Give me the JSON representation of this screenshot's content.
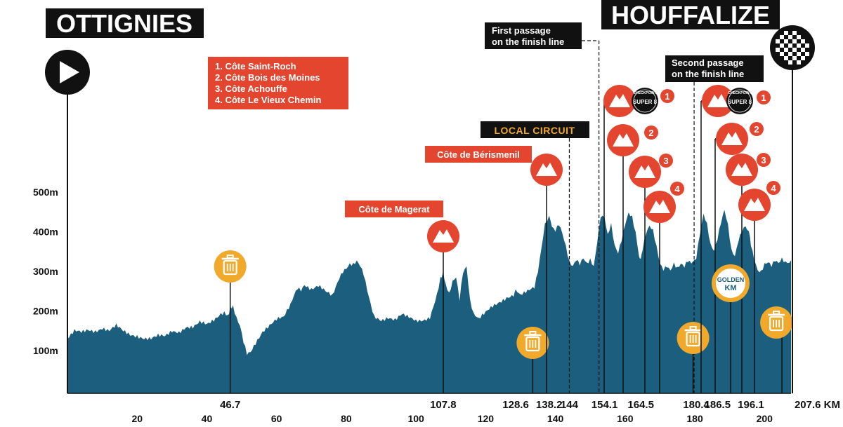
{
  "start_city": "OTTIGNIES",
  "finish_city": "HOUFFALIZE",
  "climb_list": [
    "1. Côte Saint-Roch",
    "2. Côte Bois des Moines",
    "3. Côte Achouffe",
    "4. Côte Le Vieux Chemin"
  ],
  "first_passage": [
    "First passage",
    "on the finish line"
  ],
  "second_passage": [
    "Second passage",
    "on the finish line"
  ],
  "local_circuit": "LOCAL CIRCUIT",
  "climb_labels": {
    "magerat": "Côte de Magerat",
    "berismenil": "Côte de Bérismenil"
  },
  "golden_km": [
    "GOLDEN",
    "KM"
  ],
  "checkpoint_text": {
    "top": "CHECKPOINT",
    "mid": "SUPER 8"
  },
  "colors": {
    "profile": "#1b5e7e",
    "climb": "#e3452f",
    "feed": "#f0a92a",
    "dark": "#111111",
    "golden": "#f0a92a",
    "golden_text": "#1b5e7e"
  },
  "chart_data": {
    "type": "area",
    "title": "",
    "xlabel": "",
    "ylabel": "",
    "y_unit": "m",
    "x_ticks": [
      20,
      40,
      60,
      80,
      100,
      120,
      140,
      160,
      180,
      200
    ],
    "y_ticks": [
      100,
      200,
      300,
      400,
      500
    ],
    "y_tick_labels": [
      "100m",
      "200m",
      "300m",
      "400m",
      "500m"
    ],
    "xlim": [
      0,
      207.6
    ],
    "ylim": [
      0,
      500
    ],
    "distance_end_label": "207.6 KM",
    "elevation": [
      [
        0,
        130
      ],
      [
        2,
        148
      ],
      [
        4,
        145
      ],
      [
        6,
        152
      ],
      [
        8,
        150
      ],
      [
        10,
        158
      ],
      [
        12,
        150
      ],
      [
        14,
        162
      ],
      [
        16,
        148
      ],
      [
        18,
        140
      ],
      [
        20,
        138
      ],
      [
        22,
        132
      ],
      [
        24,
        130
      ],
      [
        26,
        136
      ],
      [
        28,
        135
      ],
      [
        30,
        150
      ],
      [
        32,
        148
      ],
      [
        34,
        160
      ],
      [
        36,
        158
      ],
      [
        38,
        170
      ],
      [
        40,
        165
      ],
      [
        42,
        178
      ],
      [
        44,
        195
      ],
      [
        45,
        198
      ],
      [
        46,
        190
      ],
      [
        46.7,
        205
      ],
      [
        47.5,
        210
      ],
      [
        48.5,
        180
      ],
      [
        49.5,
        160
      ],
      [
        50.5,
        120
      ],
      [
        51.5,
        90
      ],
      [
        52.5,
        95
      ],
      [
        54,
        120
      ],
      [
        56,
        150
      ],
      [
        58,
        165
      ],
      [
        60,
        178
      ],
      [
        62,
        182
      ],
      [
        64,
        215
      ],
      [
        65,
        240
      ],
      [
        66,
        260
      ],
      [
        67,
        255
      ],
      [
        68,
        268
      ],
      [
        70,
        255
      ],
      [
        72,
        262
      ],
      [
        74,
        248
      ],
      [
        76,
        238
      ],
      [
        78,
        285
      ],
      [
        79,
        302
      ],
      [
        80,
        310
      ],
      [
        81,
        320
      ],
      [
        82,
        318
      ],
      [
        83,
        325
      ],
      [
        84,
        312
      ],
      [
        85,
        290
      ],
      [
        86,
        250
      ],
      [
        87,
        215
      ],
      [
        88,
        185
      ],
      [
        90,
        178
      ],
      [
        92,
        185
      ],
      [
        94,
        178
      ],
      [
        96,
        190
      ],
      [
        98,
        182
      ],
      [
        100,
        175
      ],
      [
        102,
        178
      ],
      [
        104,
        185
      ],
      [
        106,
        240
      ],
      [
        107,
        280
      ],
      [
        107.8,
        300
      ],
      [
        108.5,
        265
      ],
      [
        109.5,
        240
      ],
      [
        110.5,
        272
      ],
      [
        111.5,
        285
      ],
      [
        112.5,
        230
      ],
      [
        113.5,
        300
      ],
      [
        114.5,
        315
      ],
      [
        115.5,
        230
      ],
      [
        116.5,
        195
      ],
      [
        118,
        180
      ],
      [
        120,
        195
      ],
      [
        122,
        210
      ],
      [
        124,
        222
      ],
      [
        126,
        235
      ],
      [
        128,
        242
      ],
      [
        128.6,
        250
      ],
      [
        130,
        240
      ],
      [
        132,
        248
      ],
      [
        134,
        258
      ],
      [
        135,
        300
      ],
      [
        136,
        360
      ],
      [
        137,
        420
      ],
      [
        138.2,
        440
      ],
      [
        139,
        415
      ],
      [
        140,
        405
      ],
      [
        141,
        420
      ],
      [
        142,
        395
      ],
      [
        143,
        360
      ],
      [
        144,
        320
      ],
      [
        145,
        310
      ],
      [
        146,
        328
      ],
      [
        147,
        318
      ],
      [
        148,
        335
      ],
      [
        149,
        322
      ],
      [
        150,
        332
      ],
      [
        151,
        315
      ],
      [
        152,
        375
      ],
      [
        153,
        440
      ],
      [
        154.1,
        432
      ],
      [
        155,
        390
      ],
      [
        156,
        415
      ],
      [
        157,
        362
      ],
      [
        158,
        345
      ],
      [
        159,
        380
      ],
      [
        160,
        420
      ],
      [
        161,
        450
      ],
      [
        162,
        440
      ],
      [
        163,
        400
      ],
      [
        164,
        340
      ],
      [
        164.5,
        330
      ],
      [
        165,
        355
      ],
      [
        166,
        395
      ],
      [
        167,
        412
      ],
      [
        168,
        400
      ],
      [
        169,
        360
      ],
      [
        170,
        318
      ],
      [
        171,
        305
      ],
      [
        172,
        315
      ],
      [
        173,
        305
      ],
      [
        174,
        322
      ],
      [
        175,
        310
      ],
      [
        176,
        320
      ],
      [
        177,
        312
      ],
      [
        178,
        325
      ],
      [
        179,
        318
      ],
      [
        180.4,
        330
      ],
      [
        181.5,
        395
      ],
      [
        182.5,
        445
      ],
      [
        183.5,
        420
      ],
      [
        184.5,
        370
      ],
      [
        185.5,
        355
      ],
      [
        186.5,
        385
      ],
      [
        187.5,
        425
      ],
      [
        188.5,
        455
      ],
      [
        189.5,
        415
      ],
      [
        190.5,
        350
      ],
      [
        191.5,
        335
      ],
      [
        192.5,
        375
      ],
      [
        193.5,
        400
      ],
      [
        194.5,
        415
      ],
      [
        195.5,
        400
      ],
      [
        196.1,
        370
      ],
      [
        197,
        335
      ],
      [
        198,
        305
      ],
      [
        199,
        300
      ],
      [
        200,
        318
      ],
      [
        201,
        322
      ],
      [
        202,
        312
      ],
      [
        203,
        325
      ],
      [
        204,
        318
      ],
      [
        205,
        330
      ],
      [
        206,
        322
      ],
      [
        207.6,
        328
      ]
    ],
    "distance_markers": [
      {
        "km": 46.7,
        "label": "46.7"
      },
      {
        "km": 107.8,
        "label": "107.8"
      },
      {
        "km": 128.6,
        "label": "128.6"
      },
      {
        "km": 138.2,
        "label": "138.2"
      },
      {
        "km": 144,
        "label": "144"
      },
      {
        "km": 154.1,
        "label": "154.1"
      },
      {
        "km": 164.5,
        "label": "164.5"
      },
      {
        "km": 180.4,
        "label": "180.4"
      },
      {
        "km": 186.5,
        "label": "186.5"
      },
      {
        "km": 196.1,
        "label": "196.1"
      }
    ],
    "feed_zones_km": [
      46.7,
      133.5,
      179.5,
      205
    ],
    "climbs": [
      {
        "km": 107.8,
        "label": "Côte de Magerat",
        "number": ""
      },
      {
        "km": 138.2,
        "label": "Côte de Bérismenil",
        "number": ""
      },
      {
        "km": 154.9,
        "label": "",
        "number": "1"
      },
      {
        "km": 158.3,
        "label": "",
        "number": "2"
      },
      {
        "km": 164.5,
        "label": "",
        "number": "3"
      },
      {
        "km": 167.5,
        "label": "",
        "number": "4"
      },
      {
        "km": 181.5,
        "label": "",
        "number": "1"
      },
      {
        "km": 186.5,
        "label": "",
        "number": "2"
      },
      {
        "km": 192.5,
        "label": "",
        "number": "3"
      },
      {
        "km": 195,
        "label": "",
        "number": "4"
      }
    ],
    "first_finish_passage_km": 152.5,
    "second_finish_passage_km": 179.8,
    "local_circuit_start_km": 144,
    "golden_km_at": 189.3
  }
}
